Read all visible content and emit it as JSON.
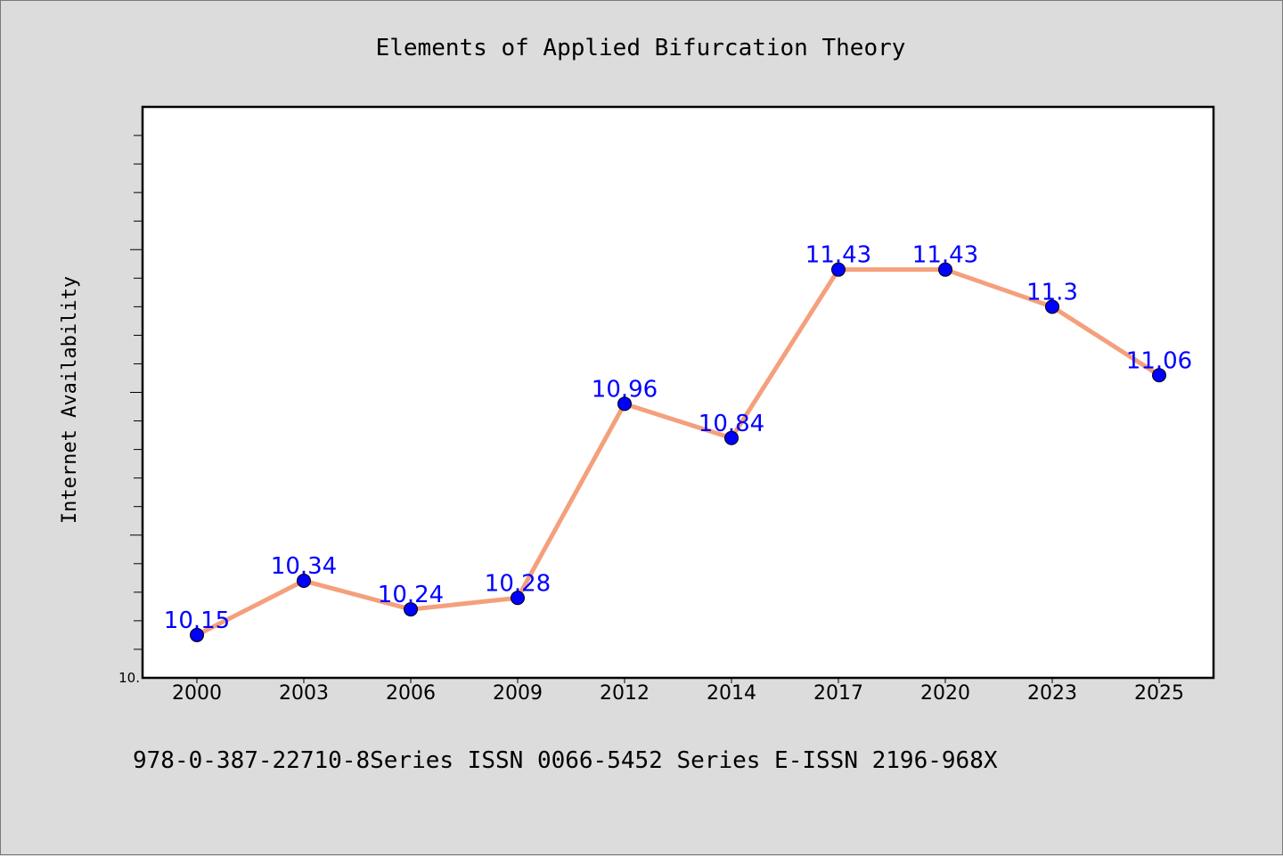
{
  "chart_data": {
    "type": "line",
    "title": "Elements of Applied Bifurcation Theory",
    "xlabel": "",
    "ylabel": "Internet Availability",
    "categories": [
      "2000",
      "2003",
      "2006",
      "2009",
      "2012",
      "2014",
      "2017",
      "2020",
      "2023",
      "2025"
    ],
    "series": [
      {
        "values": [
          10.15,
          10.34,
          10.24,
          10.28,
          10.96,
          10.84,
          11.43,
          11.43,
          11.3,
          11.06
        ],
        "data_labels": [
          "10.15",
          "10.34",
          "10.24",
          "10.28",
          "10.96",
          "10.84",
          "11.43",
          "11.43",
          "11.3",
          "11.06"
        ]
      }
    ],
    "ylim": [
      10.0,
      12.0
    ],
    "y_tick_labels": [
      "10."
    ],
    "grid": false,
    "legend": "none"
  },
  "footer": {
    "text": "978-0-387-22710-8Series ISSN 0066-5452 Series E-ISSN 2196-968X"
  },
  "colors": {
    "background": "#dcdcdc",
    "plot_area": "#ffffff",
    "line": "#f4a07c",
    "marker": "#0000ff",
    "data_label": "#0000ff"
  }
}
